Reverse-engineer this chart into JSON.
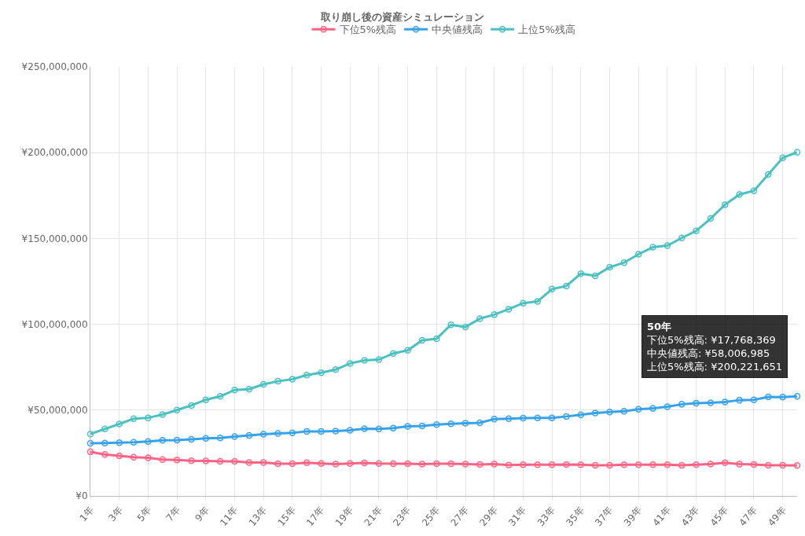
{
  "chart_data": {
    "type": "line",
    "title": "取り崩し後の資産シミュレーション",
    "categories": [
      "1年",
      null,
      "3年",
      null,
      "5年",
      null,
      "7年",
      null,
      "9年",
      null,
      "11年",
      null,
      "13年",
      null,
      "15年",
      null,
      "17年",
      null,
      "19年",
      null,
      "21年",
      null,
      "23年",
      null,
      "25年",
      null,
      "27年",
      null,
      "29年",
      null,
      "31年",
      null,
      "33年",
      null,
      "35年",
      null,
      "37年",
      null,
      "39年",
      null,
      "41年",
      null,
      "43年",
      null,
      "45年",
      null,
      "47年",
      null,
      "49年",
      null
    ],
    "series": [
      {
        "name": "下位5%残高",
        "color": "#ff6384",
        "values": [
          25700000,
          24200000,
          23300000,
          22500000,
          22200000,
          21200000,
          20900000,
          20500000,
          20400000,
          20100000,
          20100000,
          19500000,
          19500000,
          18800000,
          18800000,
          19300000,
          18900000,
          18600000,
          18900000,
          19200000,
          18900000,
          18800000,
          18800000,
          18600000,
          18800000,
          18800000,
          18600000,
          18300000,
          18600000,
          18000000,
          18200000,
          18200000,
          18200000,
          18300000,
          18200000,
          17900000,
          17900000,
          18200000,
          18200000,
          18200000,
          18200000,
          17800000,
          18200000,
          18500000,
          19300000,
          18600000,
          18300000,
          17900000,
          17900000,
          17768369
        ]
      },
      {
        "name": "中央値残高",
        "color": "#36a2eb",
        "values": [
          30700000,
          30800000,
          31000000,
          31200000,
          31700000,
          32400000,
          32500000,
          33000000,
          33500000,
          33800000,
          34600000,
          35200000,
          35900000,
          36400000,
          36700000,
          37600000,
          37600000,
          37800000,
          38200000,
          39100000,
          39000000,
          39500000,
          40500000,
          40800000,
          41500000,
          42000000,
          42400000,
          42600000,
          44800000,
          45000000,
          45300000,
          45400000,
          45500000,
          46300000,
          47300000,
          48300000,
          48900000,
          49300000,
          50500000,
          51000000,
          52000000,
          53400000,
          54000000,
          54300000,
          54700000,
          55800000,
          56000000,
          57700000,
          57600000,
          58006985
        ]
      },
      {
        "name": "上位5%残高",
        "color": "#4bc0c0",
        "values": [
          36100000,
          39000000,
          41900000,
          45000000,
          45500000,
          47400000,
          50000000,
          52700000,
          56000000,
          58000000,
          61700000,
          62200000,
          65000000,
          66800000,
          68000000,
          70400000,
          71800000,
          73600000,
          77200000,
          79000000,
          79400000,
          83000000,
          84800000,
          90700000,
          91600000,
          99700000,
          98400000,
          103300000,
          105600000,
          108800000,
          112300000,
          113300000,
          120500000,
          122300000,
          129500000,
          128200000,
          133200000,
          135900000,
          140800000,
          144900000,
          145800000,
          150300000,
          154400000,
          161600000,
          169700000,
          175600000,
          177800000,
          187300000,
          197000000,
          200221651
        ]
      }
    ],
    "ylim": [
      0,
      250000000
    ],
    "yticks": [
      {
        "value": 0,
        "label": "¥0"
      },
      {
        "value": 50000000,
        "label": "¥50,000,000"
      },
      {
        "value": 100000000,
        "label": "¥100,000,000"
      },
      {
        "value": 150000000,
        "label": "¥150,000,000"
      },
      {
        "value": 200000000,
        "label": "¥200,000,000"
      },
      {
        "value": 250000000,
        "label": "¥250,000,000"
      }
    ],
    "grid": true,
    "legend": "top",
    "marker": "circle",
    "line_style": "solid",
    "annotations": [
      "50年",
      "下位5%残高: ¥17,768,369",
      "中央値残高: ¥58,006,985",
      "上位5%残高: ¥200,221,651"
    ]
  }
}
